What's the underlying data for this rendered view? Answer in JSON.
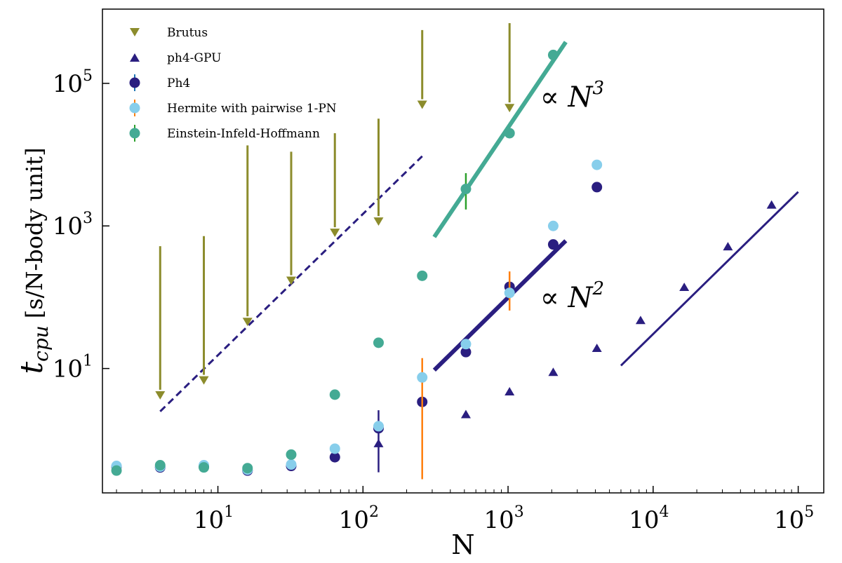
{
  "chart_data": {
    "type": "scatter",
    "title": "",
    "xlabel": "N",
    "ylabel_main": "t",
    "ylabel_sub": "cpu",
    "ylabel_unit": "[s/N-body unit]",
    "xscale": "log",
    "yscale": "log",
    "xlim": [
      1.6,
      150000
    ],
    "ylim": [
      0.18,
      1100000
    ],
    "grid": false,
    "legend_position": "top-left",
    "x_ticks": [
      {
        "value": 10,
        "base": "10",
        "exp": "1"
      },
      {
        "value": 100,
        "base": "10",
        "exp": "2"
      },
      {
        "value": 1000,
        "base": "10",
        "exp": "3"
      },
      {
        "value": 10000,
        "base": "10",
        "exp": "4"
      },
      {
        "value": 100000,
        "base": "10",
        "exp": "5"
      }
    ],
    "y_ticks": [
      {
        "value": 10,
        "base": "10",
        "exp": "1"
      },
      {
        "value": 1000,
        "base": "10",
        "exp": "3"
      },
      {
        "value": 100000,
        "base": "10",
        "exp": "5"
      }
    ],
    "series": [
      {
        "name": "Brutus",
        "marker": "triangle-down",
        "color": "#8c8c2c",
        "arrows": [
          {
            "x": 4,
            "top": 520,
            "bottom": 4.2
          },
          {
            "x": 8,
            "top": 720,
            "bottom": 6.8
          },
          {
            "x": 16,
            "top": 13500,
            "bottom": 45
          },
          {
            "x": 32,
            "top": 11000,
            "bottom": 170
          },
          {
            "x": 64,
            "top": 20000,
            "bottom": 800
          },
          {
            "x": 128,
            "top": 32000,
            "bottom": 1150
          },
          {
            "x": 256,
            "top": 560000,
            "bottom": 50000
          },
          {
            "x": 1024,
            "top": 700000,
            "bottom": 45000
          }
        ]
      },
      {
        "name": "ph4-GPU",
        "marker": "triangle-up",
        "color": "#2a1e80",
        "points": [
          {
            "x": 128,
            "y": 0.9,
            "err_lo": 0.35,
            "err_hi": 2.6
          },
          {
            "x": 512,
            "y": 2.3
          },
          {
            "x": 1024,
            "y": 4.8
          },
          {
            "x": 2048,
            "y": 9
          },
          {
            "x": 4096,
            "y": 19.5
          },
          {
            "x": 8192,
            "y": 48
          },
          {
            "x": 16384,
            "y": 140
          },
          {
            "x": 32768,
            "y": 520
          },
          {
            "x": 65536,
            "y": 2000
          }
        ]
      },
      {
        "name": "Ph4",
        "marker": "circle",
        "color": "#2a1e80",
        "err_color": "#1f77b4",
        "points": [
          {
            "x": 2,
            "y": 0.42
          },
          {
            "x": 4,
            "y": 0.41
          },
          {
            "x": 8,
            "y": 0.42
          },
          {
            "x": 16,
            "y": 0.37
          },
          {
            "x": 32,
            "y": 0.43
          },
          {
            "x": 64,
            "y": 0.57
          },
          {
            "x": 128,
            "y": 1.45
          },
          {
            "x": 256,
            "y": 3.4
          },
          {
            "x": 512,
            "y": 17
          },
          {
            "x": 1024,
            "y": 140
          },
          {
            "x": 2048,
            "y": 550
          },
          {
            "x": 4096,
            "y": 3500
          }
        ]
      },
      {
        "name": "Hermite with pairwise 1-PN",
        "marker": "circle",
        "color": "#87ceeb",
        "err_color": "#ff7f0e",
        "points": [
          {
            "x": 2,
            "y": 0.43
          },
          {
            "x": 4,
            "y": 0.42
          },
          {
            "x": 8,
            "y": 0.44
          },
          {
            "x": 16,
            "y": 0.38
          },
          {
            "x": 32,
            "y": 0.45
          },
          {
            "x": 64,
            "y": 0.75
          },
          {
            "x": 128,
            "y": 1.55
          },
          {
            "x": 256,
            "y": 7.5,
            "err_lo": 0.28,
            "err_hi": 14
          },
          {
            "x": 512,
            "y": 22
          },
          {
            "x": 1024,
            "y": 115,
            "err_lo": 65,
            "err_hi": 230
          },
          {
            "x": 2048,
            "y": 1000
          },
          {
            "x": 4096,
            "y": 7200
          }
        ]
      },
      {
        "name": "Einstein-Infeld-Hoffmann",
        "marker": "circle",
        "color": "#44aa94",
        "err_color": "#2ca02c",
        "points": [
          {
            "x": 2,
            "y": 0.37
          },
          {
            "x": 4,
            "y": 0.44
          },
          {
            "x": 8,
            "y": 0.41
          },
          {
            "x": 16,
            "y": 0.4
          },
          {
            "x": 32,
            "y": 0.62
          },
          {
            "x": 64,
            "y": 4.3
          },
          {
            "x": 128,
            "y": 23
          },
          {
            "x": 256,
            "y": 200
          },
          {
            "x": 512,
            "y": 3300,
            "err_lo": 1700,
            "err_hi": 5500
          },
          {
            "x": 1024,
            "y": 20000
          },
          {
            "x": 2048,
            "y": 250000
          }
        ]
      }
    ],
    "fit_lines": [
      {
        "label": "N^3 fit",
        "color": "#44aa94",
        "width": 6,
        "dashed": false,
        "x0": 310,
        "y0": 700,
        "x1": 2500,
        "y1": 380000
      },
      {
        "label": "N^2 fit",
        "color": "#2a1e80",
        "width": 6,
        "dashed": false,
        "x0": 310,
        "y0": 9.5,
        "x1": 2500,
        "y1": 620
      },
      {
        "label": "GPU N^2 fit",
        "color": "#2a1e80",
        "width": 3,
        "dashed": false,
        "x0": 6000,
        "y0": 11,
        "x1": 100000,
        "y1": 3000
      },
      {
        "label": "Brutus trend",
        "color": "#2a1e80",
        "width": 3,
        "dashed": true,
        "x0": 4,
        "y0": 2.5,
        "x1": 256,
        "y1": 9500
      }
    ],
    "annotations": [
      {
        "text": "∝ N",
        "exp": "3",
        "x": 1900,
        "y": 65000
      },
      {
        "text": "∝ N",
        "exp": "2",
        "x": 1900,
        "y": 100
      }
    ]
  }
}
